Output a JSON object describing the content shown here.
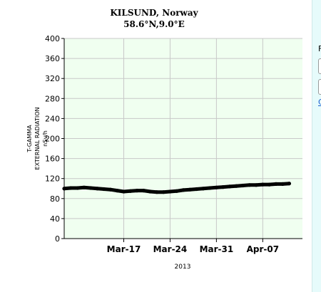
{
  "chart_data": {
    "type": "line",
    "title": "KILSUND, Norway",
    "subtitle": "58.6°N,9.0°E",
    "ylabel_lines": [
      "T-GAMMA",
      "EXTERNAL RADIATION",
      "nSv/h"
    ],
    "xlabel": "2013",
    "ylim": [
      0,
      400
    ],
    "yticks": [
      0,
      40,
      80,
      120,
      160,
      200,
      240,
      280,
      320,
      360,
      400
    ],
    "xlim": [
      "2013-03-08",
      "2013-04-13"
    ],
    "xticks": [
      {
        "date": "2013-03-17",
        "label": "Mar-17"
      },
      {
        "date": "2013-03-24",
        "label": "Mar-24"
      },
      {
        "date": "2013-03-31",
        "label": "Mar-31"
      },
      {
        "date": "2013-04-07",
        "label": "Apr-07"
      }
    ],
    "grid": true,
    "plot_background": "#f0fff0",
    "series": [
      {
        "color": "#000000",
        "points": [
          [
            "2013-03-08",
            100
          ],
          [
            "2013-03-09",
            101
          ],
          [
            "2013-03-10",
            101
          ],
          [
            "2013-03-11",
            102
          ],
          [
            "2013-03-12",
            101
          ],
          [
            "2013-03-13",
            100
          ],
          [
            "2013-03-14",
            99
          ],
          [
            "2013-03-15",
            98
          ],
          [
            "2013-03-16",
            96
          ],
          [
            "2013-03-17",
            94
          ],
          [
            "2013-03-18",
            95
          ],
          [
            "2013-03-19",
            96
          ],
          [
            "2013-03-20",
            96
          ],
          [
            "2013-03-21",
            94
          ],
          [
            "2013-03-22",
            93
          ],
          [
            "2013-03-23",
            93
          ],
          [
            "2013-03-24",
            94
          ],
          [
            "2013-03-25",
            95
          ],
          [
            "2013-03-26",
            97
          ],
          [
            "2013-03-27",
            98
          ],
          [
            "2013-03-28",
            99
          ],
          [
            "2013-03-29",
            100
          ],
          [
            "2013-03-30",
            101
          ],
          [
            "2013-03-31",
            102
          ],
          [
            "2013-04-01",
            103
          ],
          [
            "2013-04-02",
            104
          ],
          [
            "2013-04-03",
            105
          ],
          [
            "2013-04-04",
            106
          ],
          [
            "2013-04-05",
            107
          ],
          [
            "2013-04-06",
            107
          ],
          [
            "2013-04-07",
            108
          ],
          [
            "2013-04-08",
            108
          ],
          [
            "2013-04-09",
            109
          ],
          [
            "2013-04-10",
            109
          ],
          [
            "2013-04-11",
            110
          ]
        ]
      }
    ]
  },
  "side_panel": {
    "letter": "F",
    "link_text": "C"
  }
}
